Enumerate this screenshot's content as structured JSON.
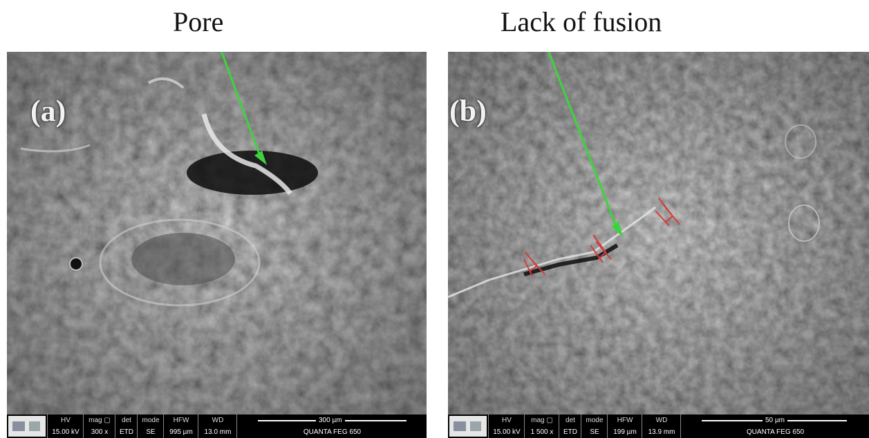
{
  "panels": [
    {
      "title": "Pore",
      "letter": "(a)",
      "databar": {
        "hv": {
          "k": "HV",
          "v": "15.00 kV"
        },
        "mag": {
          "k": "mag ▢",
          "v": "300 x"
        },
        "det": {
          "k": "det",
          "v": "ETD"
        },
        "mode": {
          "k": "mode",
          "v": "SE"
        },
        "hfw": {
          "k": "HFW",
          "v": "995 µm"
        },
        "wd": {
          "k": "WD",
          "v": "13.0 mm"
        },
        "scale": "300 µm",
        "instrument": "QUANTA FEG 650"
      }
    },
    {
      "title": "Lack of fusion",
      "letter": "(b)",
      "databar": {
        "hv": {
          "k": "HV",
          "v": "15.00 kV"
        },
        "mag": {
          "k": "mag ▢",
          "v": "1 500 x"
        },
        "det": {
          "k": "det",
          "v": "ETD"
        },
        "mode": {
          "k": "mode",
          "v": "SE"
        },
        "hfw": {
          "k": "HFW",
          "v": "199 µm"
        },
        "wd": {
          "k": "WD",
          "v": "13.9 mm"
        },
        "scale": "50 µm",
        "instrument": "QUANTA FEG 650"
      }
    }
  ],
  "colors": {
    "arrow": "#3fd23f",
    "marker": "#d23c3c",
    "background": "#3c3c3c"
  }
}
